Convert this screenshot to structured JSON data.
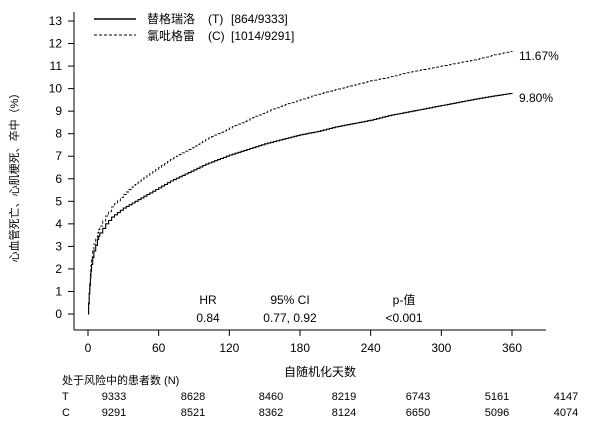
{
  "chart_data": {
    "type": "line",
    "title": "",
    "xlabel": "自随机化天数",
    "ylabel": "心血管死亡、心肌梗死、卒中（%）",
    "xlim": [
      0,
      360
    ],
    "ylim": [
      0,
      13
    ],
    "xticks": [
      0,
      60,
      120,
      180,
      240,
      300,
      360
    ],
    "yticks": [
      0,
      1,
      2,
      3,
      4,
      5,
      6,
      7,
      8,
      9,
      10,
      11,
      12,
      13
    ],
    "legend_position": "top-left",
    "series": [
      {
        "name": "替格瑞洛",
        "legend_code": "(T)",
        "legend_count": "[864/9333]",
        "line_style": "solid",
        "end_label": "9.80%",
        "x": [
          0,
          1,
          2,
          3,
          5,
          8,
          10,
          15,
          20,
          30,
          40,
          50,
          60,
          70,
          80,
          90,
          100,
          110,
          120,
          135,
          150,
          165,
          180,
          195,
          210,
          225,
          240,
          255,
          270,
          285,
          300,
          315,
          330,
          345,
          360
        ],
        "y": [
          0,
          0.9,
          1.6,
          2.2,
          2.8,
          3.3,
          3.6,
          4.0,
          4.3,
          4.7,
          5.0,
          5.3,
          5.6,
          5.9,
          6.15,
          6.4,
          6.65,
          6.85,
          7.05,
          7.3,
          7.55,
          7.75,
          7.95,
          8.1,
          8.3,
          8.45,
          8.6,
          8.8,
          8.95,
          9.1,
          9.25,
          9.4,
          9.55,
          9.68,
          9.8
        ]
      },
      {
        "name": "氯吡格雷",
        "legend_code": "(C)",
        "legend_count": "[1014/9291]",
        "line_style": "dashed",
        "end_label": "11.67%",
        "x": [
          0,
          1,
          2,
          3,
          5,
          8,
          10,
          15,
          20,
          30,
          40,
          50,
          60,
          70,
          80,
          90,
          100,
          110,
          120,
          135,
          150,
          165,
          180,
          195,
          210,
          225,
          240,
          255,
          270,
          285,
          300,
          315,
          330,
          345,
          360
        ],
        "y": [
          0,
          1.0,
          1.8,
          2.5,
          3.1,
          3.6,
          3.9,
          4.35,
          4.75,
          5.3,
          5.75,
          6.15,
          6.5,
          6.85,
          7.15,
          7.45,
          7.75,
          8.0,
          8.25,
          8.6,
          8.95,
          9.25,
          9.5,
          9.75,
          9.95,
          10.15,
          10.35,
          10.5,
          10.7,
          10.85,
          11.0,
          11.15,
          11.3,
          11.5,
          11.67
        ]
      }
    ],
    "annotations": {
      "hr_label": "HR",
      "hr_value": "0.84",
      "ci_label": "95% CI",
      "ci_value": "0.77, 0.92",
      "p_label": "p-值",
      "p_value": "<0.001"
    },
    "risk_table": {
      "title": "处于风险中的患者数 (N)",
      "rows": [
        {
          "label": "T",
          "values": [
            "9333",
            "8628",
            "8460",
            "8219",
            "6743",
            "5161",
            "4147"
          ]
        },
        {
          "label": "C",
          "values": [
            "9291",
            "8521",
            "8362",
            "8124",
            "6650",
            "5096",
            "4074"
          ]
        }
      ]
    }
  }
}
